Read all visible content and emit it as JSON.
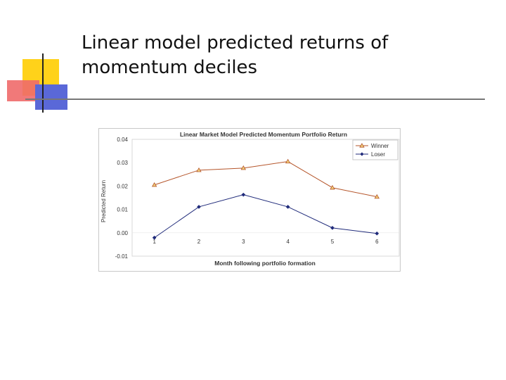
{
  "slide": {
    "title_line1": "Linear model predicted returns of",
    "title_line2": "momentum deciles"
  },
  "chart_data": {
    "type": "line",
    "title": "Linear Market Model Predicted Momentum Portfolio Return",
    "xlabel": "Month following portfolio formation",
    "ylabel": "Predicted Return",
    "x": [
      1,
      2,
      3,
      4,
      5,
      6
    ],
    "ylim": [
      -0.01,
      0.04
    ],
    "yticks": [
      "0.04",
      "0.03",
      "0.02",
      "0.01",
      "0.00",
      "-0.01"
    ],
    "legend_position": "top-right",
    "series": [
      {
        "name": "Winner",
        "values": [
          0.0205,
          0.0268,
          0.0277,
          0.0305,
          0.0193,
          0.0154
        ],
        "color": "#b5552a",
        "marker": "triangle"
      },
      {
        "name": "Loser",
        "values": [
          -0.0021,
          0.0111,
          0.0163,
          0.0111,
          0.0021,
          -0.0003
        ],
        "color": "#1f2a7a",
        "marker": "diamond"
      }
    ]
  }
}
